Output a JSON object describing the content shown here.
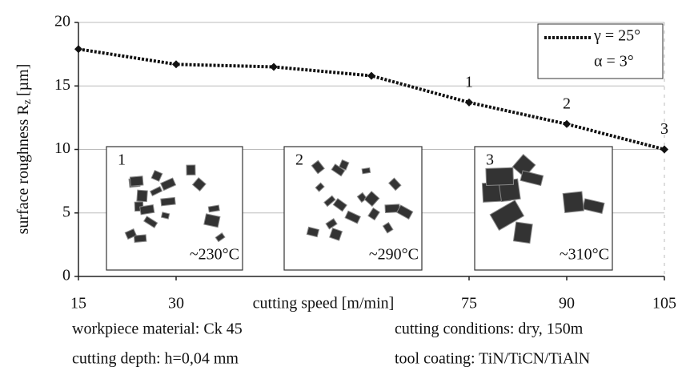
{
  "chart_data": {
    "type": "line",
    "x_label": "cutting speed [m/min]",
    "y_label": "surface roughness R",
    "y_label_subscript": "z",
    "y_label_unit": "[µm]",
    "x": [
      15,
      30,
      45,
      60,
      75,
      90,
      105
    ],
    "series": [
      {
        "color": "#111111",
        "values": [
          17.9,
          16.7,
          16.5,
          15.8,
          13.7,
          12.0,
          10.0
        ]
      }
    ],
    "point_labels": [
      null,
      null,
      null,
      null,
      "1",
      "2",
      "3"
    ],
    "legend": [
      "γ = 25°",
      "α = 3°"
    ],
    "legend_position": "upper right",
    "xlim": [
      15,
      105
    ],
    "xticks": [
      15,
      30,
      75,
      90,
      105
    ],
    "ylim": [
      0,
      20
    ],
    "yticks": [
      0,
      5,
      10,
      15,
      20
    ],
    "grid": true,
    "insets": [
      {
        "label": "1",
        "temperature": "~230°C"
      },
      {
        "label": "2",
        "temperature": "~290°C"
      },
      {
        "label": "3",
        "temperature": "~310°C"
      }
    ],
    "notes": [
      "workpiece material: Ck 45",
      "cutting conditions: dry, 150m",
      "cutting depth: h=0,04 mm",
      "tool coating: TiN/TiCN/TiAlN"
    ]
  }
}
